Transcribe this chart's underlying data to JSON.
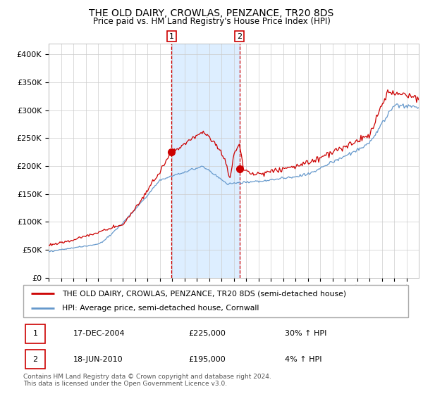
{
  "title": "THE OLD DAIRY, CROWLAS, PENZANCE, TR20 8DS",
  "subtitle": "Price paid vs. HM Land Registry's House Price Index (HPI)",
  "legend_line1": "THE OLD DAIRY, CROWLAS, PENZANCE, TR20 8DS (semi-detached house)",
  "legend_line2": "HPI: Average price, semi-detached house, Cornwall",
  "sale1_date": "17-DEC-2004",
  "sale1_price": 225000,
  "sale1_hpi": "30% ↑ HPI",
  "sale2_date": "18-JUN-2010",
  "sale2_price": 195000,
  "sale2_hpi": "4% ↑ HPI",
  "footer": "Contains HM Land Registry data © Crown copyright and database right 2024.\nThis data is licensed under the Open Government Licence v3.0.",
  "red_color": "#cc0000",
  "blue_color": "#6699cc",
  "shade_color": "#ddeeff",
  "ylim": [
    0,
    420000
  ],
  "yticks": [
    0,
    50000,
    100000,
    150000,
    200000,
    250000,
    300000,
    350000,
    400000
  ],
  "sale1_x": 2004.96,
  "sale2_x": 2010.46,
  "xlim_start": 1995,
  "xlim_end": 2025
}
